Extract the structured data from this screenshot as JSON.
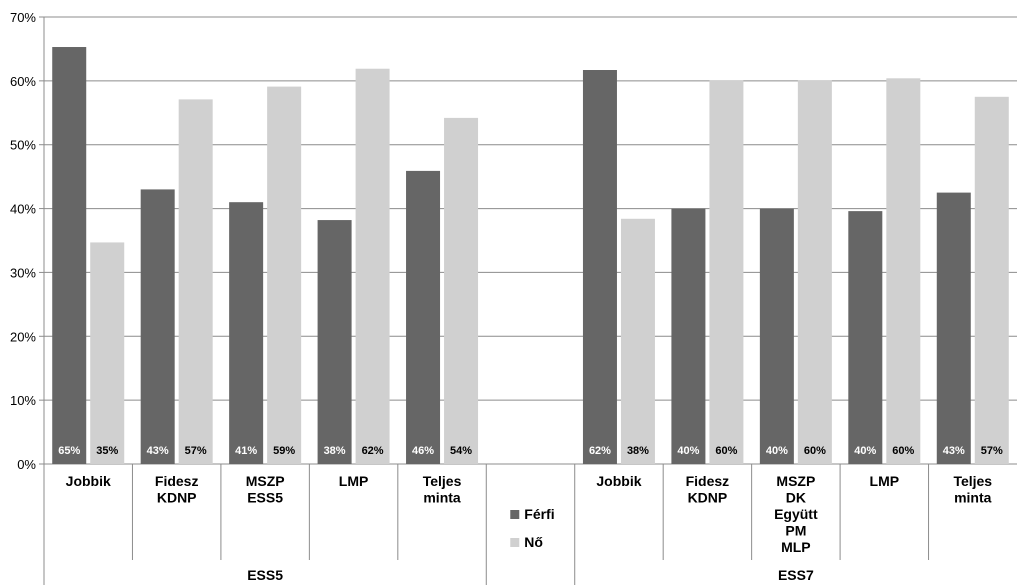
{
  "chart_data": {
    "type": "bar",
    "ylim": [
      0,
      70
    ],
    "ytick_step": 10,
    "ytick_labels": [
      "0%",
      "10%",
      "20%",
      "30%",
      "40%",
      "50%",
      "60%",
      "70%"
    ],
    "grid": true,
    "legend_placement": "center-bottom (between groups)",
    "groups": [
      {
        "name": "ESS5",
        "categories": [
          [
            "Jobbik"
          ],
          [
            "Fidesz",
            "KDNP"
          ],
          [
            "MSZP",
            "ESS5"
          ],
          [
            "LMP"
          ],
          [
            "Teljes",
            "minta"
          ]
        ]
      },
      {
        "name": "ESS7",
        "categories": [
          [
            "Jobbik"
          ],
          [
            "Fidesz",
            "KDNP"
          ],
          [
            "MSZP",
            "DK",
            "Együtt",
            "PM",
            "MLP"
          ],
          [
            "LMP"
          ],
          [
            "Teljes",
            "minta"
          ]
        ]
      }
    ],
    "series": [
      {
        "name": "Férfi",
        "color": "#666666",
        "values": [
          65.3,
          43.0,
          41.0,
          38.2,
          45.9,
          61.7,
          40.0,
          40.0,
          39.6,
          42.5
        ],
        "labels": [
          "65%",
          "43%",
          "41%",
          "38%",
          "46%",
          "62%",
          "40%",
          "40%",
          "40%",
          "43%"
        ]
      },
      {
        "name": "Nő",
        "color": "#d0d0d0",
        "values": [
          34.7,
          57.1,
          59.1,
          61.9,
          54.2,
          38.4,
          60.1,
          60.1,
          60.4,
          57.5
        ],
        "labels": [
          "35%",
          "57%",
          "59%",
          "62%",
          "54%",
          "38%",
          "60%",
          "60%",
          "60%",
          "57%"
        ]
      }
    ]
  }
}
